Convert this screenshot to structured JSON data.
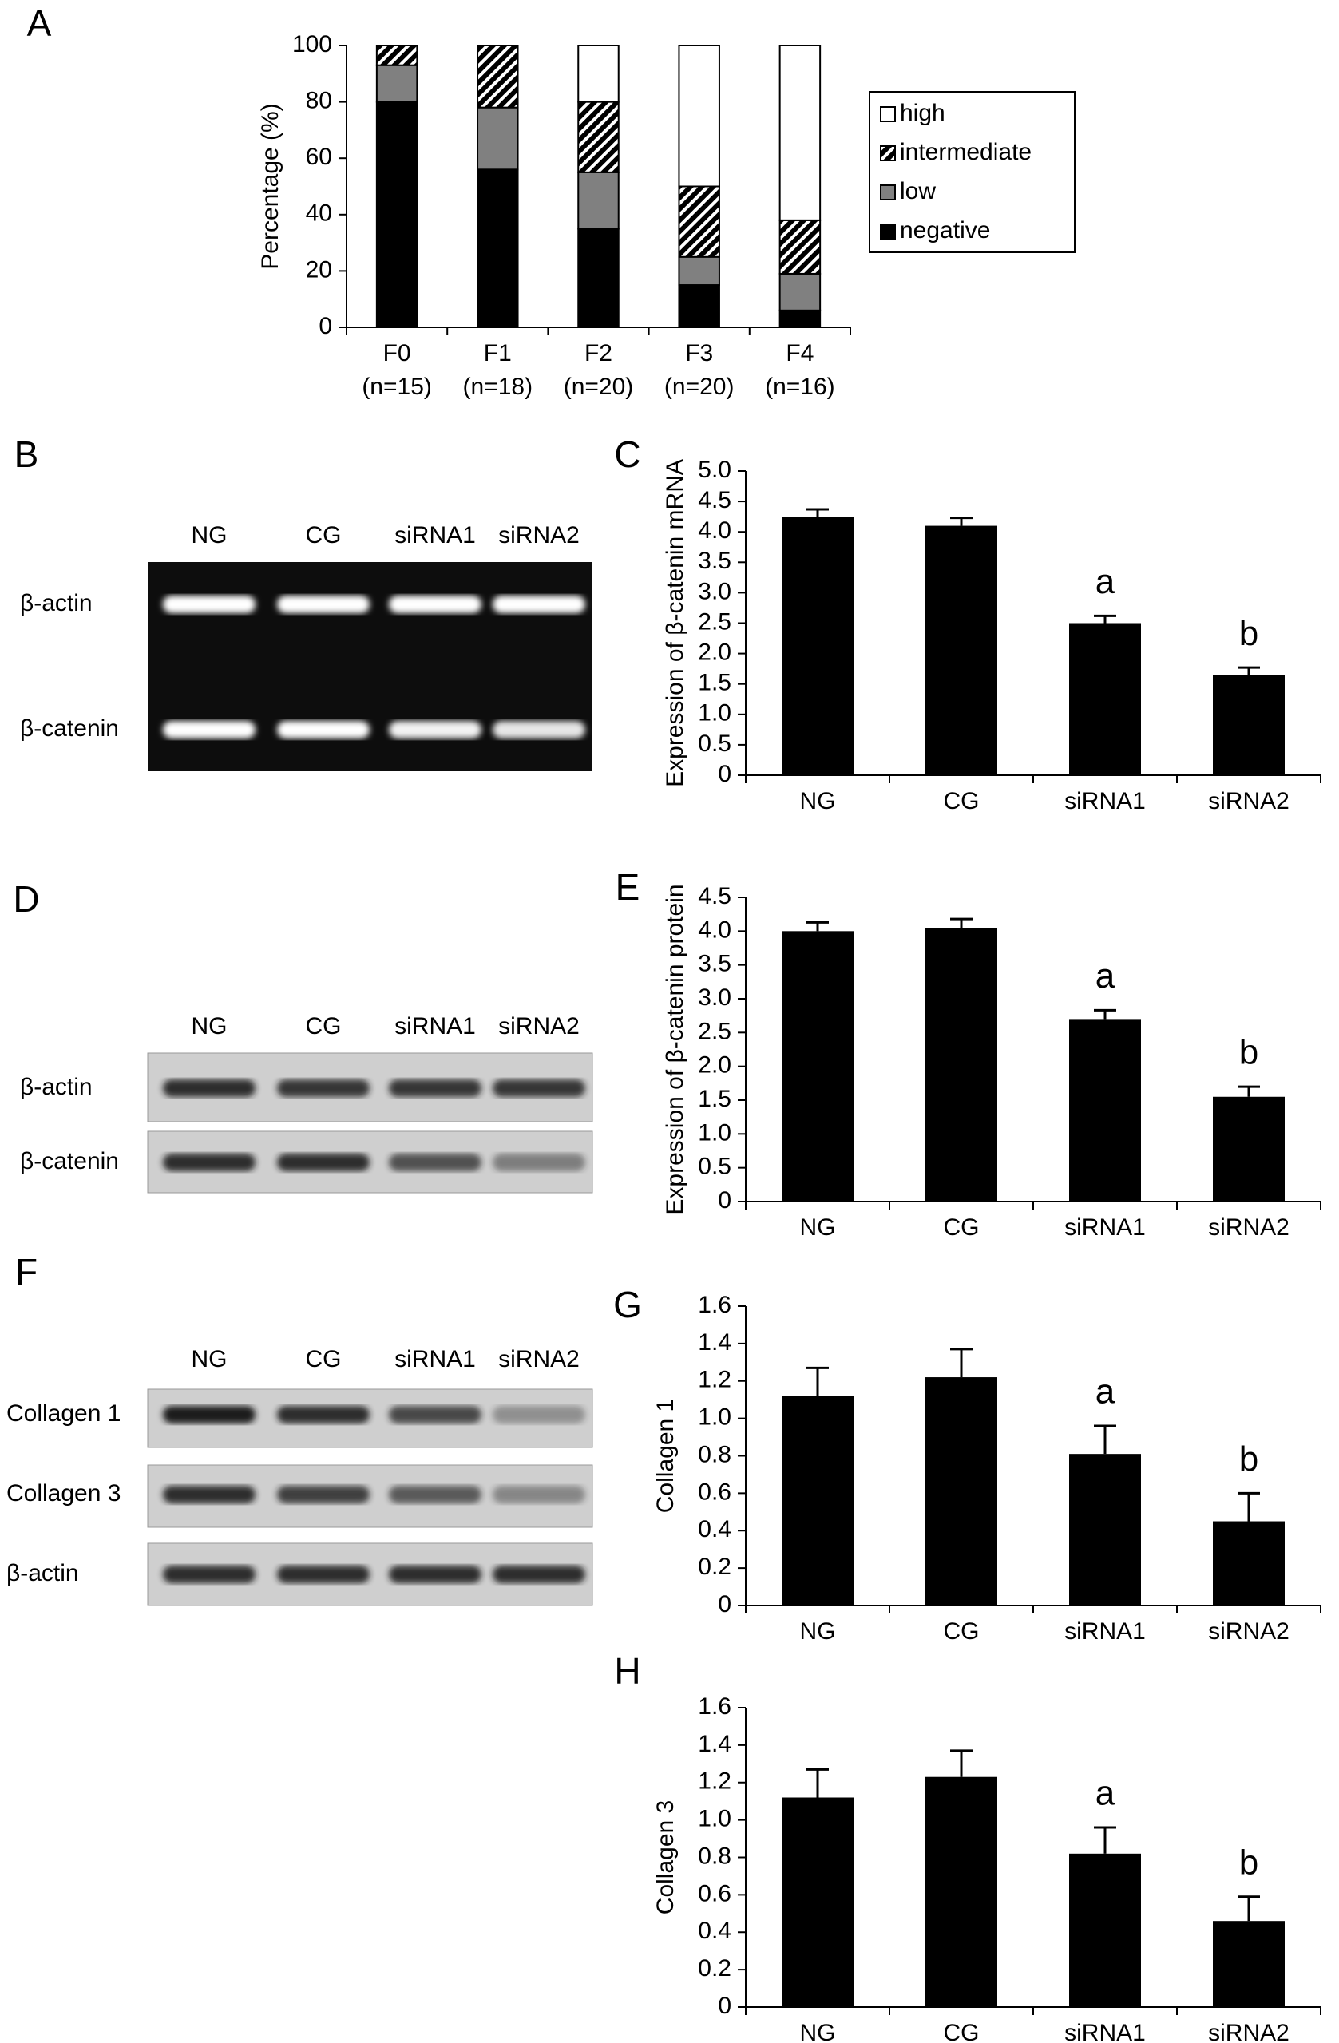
{
  "chart_data": [
    {
      "type": "bar",
      "panel": "A",
      "stacked": true,
      "ylabel": "Percentage (%)",
      "categories": [
        "F0",
        "F1",
        "F2",
        "F3",
        "F4"
      ],
      "category_sublabels": [
        "(n=15)",
        "(n=18)",
        "(n=20)",
        "(n=20)",
        "(n=16)"
      ],
      "series": [
        {
          "name": "negative",
          "color": "#000000",
          "values": [
            80,
            56,
            35,
            15,
            6
          ]
        },
        {
          "name": "low",
          "color": "#808080",
          "values": [
            13,
            22,
            20,
            10,
            13
          ]
        },
        {
          "name": "intermediate",
          "color": "#000000",
          "hatch": true,
          "values": [
            7,
            22,
            25,
            25,
            19
          ]
        },
        {
          "name": "high",
          "color": "#ffffff",
          "values": [
            0,
            0,
            20,
            50,
            62
          ]
        }
      ],
      "legend": "right",
      "ylim": [
        0,
        100
      ],
      "yticks": [
        0,
        20,
        40,
        60,
        80,
        100
      ]
    },
    {
      "type": "bar",
      "panel": "C",
      "ylabel": "Expression of  β-catenin mRNA",
      "categories": [
        "NG",
        "CG",
        "siRNA1",
        "siRNA2"
      ],
      "color": "#000000",
      "values": [
        4.25,
        4.1,
        2.5,
        1.65
      ],
      "errors": [
        0.12,
        0.13,
        0.12,
        0.12
      ],
      "annotations": [
        null,
        null,
        "a",
        "b"
      ],
      "ylim": [
        0,
        5
      ],
      "yticks": [
        0,
        0.5,
        {
          "value": 1,
          "label": "1.0"
        },
        1.5,
        {
          "value": 2,
          "label": "2.0"
        },
        2.5,
        {
          "value": 3,
          "label": "3.0"
        },
        3.5,
        {
          "value": 4,
          "label": "4.0"
        },
        4.5,
        {
          "value": 5,
          "label": "5.0"
        }
      ]
    },
    {
      "type": "bar",
      "panel": "E",
      "ylabel": "Expression of  β-catenin protein",
      "categories": [
        "NG",
        "CG",
        "siRNA1",
        "siRNA2"
      ],
      "color": "#000000",
      "values": [
        4.0,
        4.05,
        2.7,
        1.55
      ],
      "errors": [
        0.13,
        0.13,
        0.13,
        0.15
      ],
      "annotations": [
        null,
        null,
        "a",
        "b"
      ],
      "ylim": [
        0,
        4.5
      ],
      "yticks": [
        0,
        0.5,
        {
          "value": 1,
          "label": "1.0"
        },
        1.5,
        {
          "value": 2,
          "label": "2.0"
        },
        2.5,
        {
          "value": 3,
          "label": "3.0"
        },
        3.5,
        {
          "value": 4,
          "label": "4.0"
        },
        4.5
      ]
    },
    {
      "type": "bar",
      "panel": "G",
      "ylabel": "Collagen 1",
      "categories": [
        "NG",
        "CG",
        "siRNA1",
        "siRNA2"
      ],
      "color": "#000000",
      "values": [
        1.12,
        1.22,
        0.81,
        0.45
      ],
      "errors": [
        0.15,
        0.15,
        0.15,
        0.15
      ],
      "annotations": [
        null,
        null,
        "a",
        "b"
      ],
      "ylim": [
        0,
        1.6
      ],
      "yticks": [
        0,
        0.2,
        0.4,
        0.6,
        0.8,
        {
          "value": 1,
          "label": "1.0"
        },
        1.2,
        1.4,
        1.6
      ]
    },
    {
      "type": "bar",
      "panel": "H",
      "ylabel": "Collagen 3",
      "categories": [
        "NG",
        "CG",
        "siRNA1",
        "siRNA2"
      ],
      "color": "#000000",
      "values": [
        1.12,
        1.23,
        0.82,
        0.46
      ],
      "errors": [
        0.15,
        0.14,
        0.14,
        0.13
      ],
      "annotations": [
        null,
        null,
        "a",
        "b"
      ],
      "ylim": [
        0,
        1.6
      ],
      "yticks": [
        0,
        0.2,
        0.4,
        0.6,
        0.8,
        {
          "value": 1,
          "label": "1.0"
        },
        1.2,
        1.4,
        1.6
      ]
    }
  ],
  "blots": [
    {
      "panel": "B",
      "lanes": [
        "NG",
        "CG",
        "siRNA1",
        "siRNA2"
      ],
      "rows": [
        "β-actin",
        "β-catenin"
      ]
    },
    {
      "panel": "D",
      "lanes": [
        "NG",
        "CG",
        "siRNA1",
        "siRNA2"
      ],
      "rows": [
        "β-actin",
        "β-catenin"
      ]
    },
    {
      "panel": "F",
      "lanes": [
        "NG",
        "CG",
        "siRNA1",
        "siRNA2"
      ],
      "rows": [
        "Collagen 1",
        "Collagen 3",
        "β-actin"
      ]
    }
  ]
}
